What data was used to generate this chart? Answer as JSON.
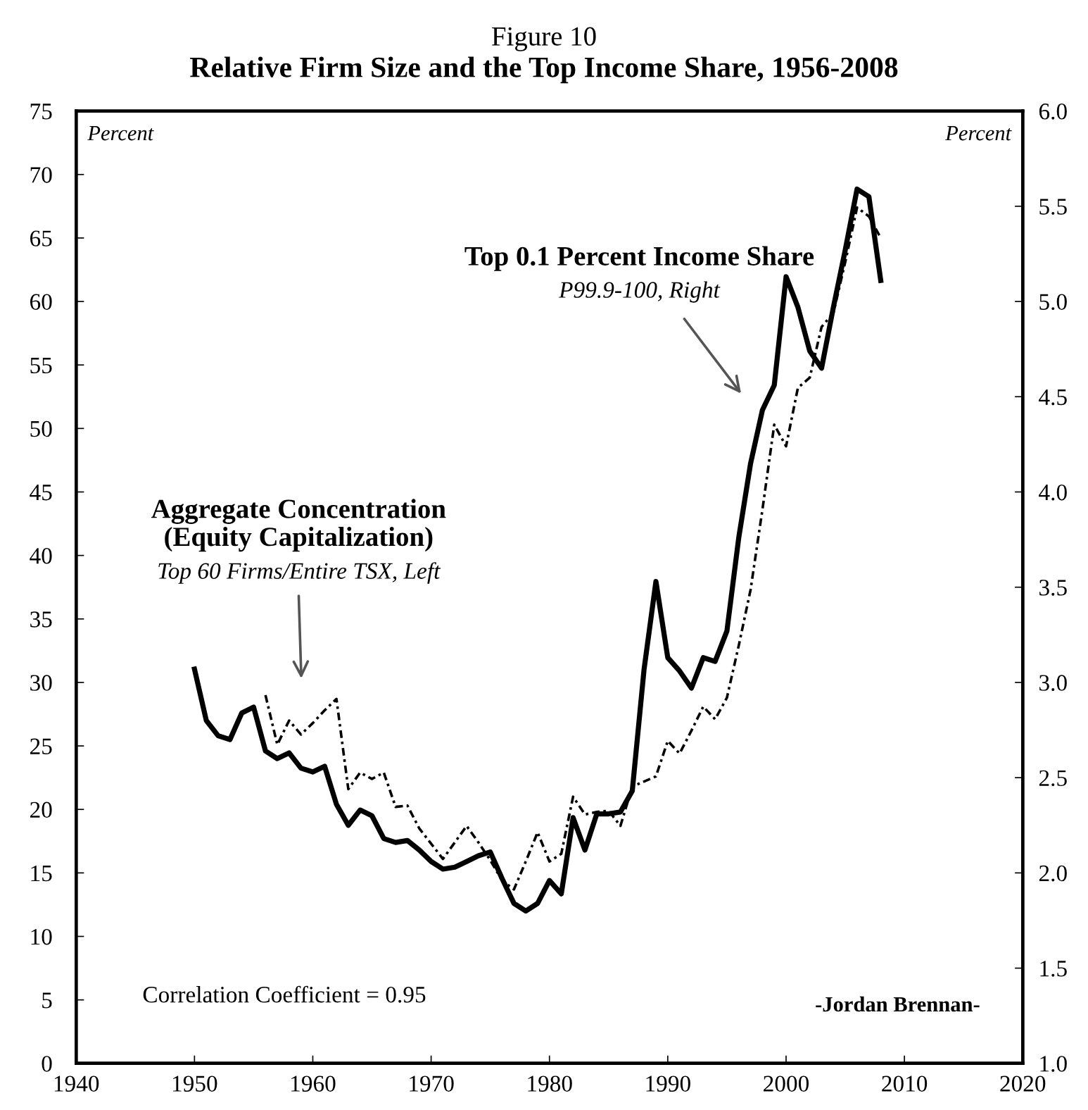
{
  "chart_data": {
    "type": "line",
    "title": "Figure 10",
    "subtitle": "Relative Firm Size and the Top Income Share, 1956-2008",
    "ylabel": "Percent",
    "y2label": "Percent",
    "xlim": [
      1940,
      2020
    ],
    "xticks": [
      1940,
      1950,
      1960,
      1970,
      1980,
      1990,
      2000,
      2010,
      2020
    ],
    "ylim": [
      0,
      75
    ],
    "yticks": [
      0,
      5,
      10,
      15,
      20,
      25,
      30,
      35,
      40,
      45,
      50,
      55,
      60,
      65,
      70,
      75
    ],
    "y2lim": [
      1.0,
      6.0
    ],
    "y2ticks": [
      {
        "value": 1.0,
        "label": "1.0"
      },
      {
        "value": 1.5,
        "label": "1.5"
      },
      {
        "value": 2.0,
        "label": "2.0"
      },
      {
        "value": 2.5,
        "label": "2.5"
      },
      {
        "value": 3.0,
        "label": "3.0"
      },
      {
        "value": 3.5,
        "label": "3.5"
      },
      {
        "value": 4.0,
        "label": "4.0"
      },
      {
        "value": 4.5,
        "label": "4.5"
      },
      {
        "value": 5.0,
        "label": "5.0"
      },
      {
        "value": 5.5,
        "label": "5.5"
      },
      {
        "value": 6.0,
        "label": "6.0"
      }
    ],
    "grid": false,
    "series": [
      {
        "color": "#000000",
        "axis": "y2",
        "line_style": "solid",
        "x": [
          1950,
          1951,
          1952,
          1953,
          1954,
          1955,
          1956,
          1957,
          1958,
          1959,
          1960,
          1961,
          1962,
          1963,
          1964,
          1965,
          1966,
          1967,
          1968,
          1969,
          1970,
          1971,
          1972,
          1973,
          1974,
          1975,
          1976,
          1977,
          1978,
          1979,
          1980,
          1981,
          1982,
          1983,
          1984,
          1985,
          1986,
          1987,
          1988,
          1989,
          1990,
          1991,
          1992,
          1993,
          1994,
          1995,
          1996,
          1997,
          1998,
          1999,
          2000,
          2001,
          2002,
          2003,
          2004,
          2005,
          2006,
          2007,
          2008
        ],
        "values": [
          3.07,
          2.8,
          2.72,
          2.7,
          2.84,
          2.87,
          2.64,
          2.6,
          2.63,
          2.55,
          2.53,
          2.56,
          2.36,
          2.25,
          2.33,
          2.3,
          2.18,
          2.16,
          2.17,
          2.12,
          2.06,
          2.02,
          2.03,
          2.06,
          2.09,
          2.11,
          1.97,
          1.84,
          1.8,
          1.84,
          1.96,
          1.89,
          2.29,
          2.12,
          2.31,
          2.31,
          2.32,
          2.43,
          3.07,
          3.53,
          3.13,
          3.06,
          2.97,
          3.13,
          3.11,
          3.27,
          3.76,
          4.15,
          4.43,
          4.56,
          5.13,
          4.97,
          4.74,
          4.65,
          4.97,
          5.27,
          5.59,
          5.55,
          5.11
        ]
      },
      {
        "color": "#000000",
        "line_style": "dashed",
        "x": [
          1956,
          1957,
          1958,
          1959,
          1960,
          1961,
          1962,
          1963,
          1964,
          1965,
          1966,
          1967,
          1968,
          1969,
          1970,
          1971,
          1972,
          1973,
          1974,
          1975,
          1976,
          1977,
          1978,
          1979,
          1980,
          1981,
          1982,
          1983,
          1984,
          1985,
          1986,
          1987,
          1988,
          1989,
          1990,
          1991,
          1992,
          1993,
          1994,
          1995,
          1996,
          1997,
          1998,
          1999,
          2000,
          2001,
          2002,
          2003,
          2004,
          2005,
          2006,
          2007,
          2008
        ],
        "values": [
          29.0,
          25.1,
          27.0,
          25.9,
          26.8,
          27.8,
          28.7,
          21.6,
          22.9,
          22.4,
          22.9,
          20.2,
          20.3,
          18.5,
          17.3,
          16.1,
          17.4,
          18.7,
          17.4,
          16.0,
          14.4,
          13.7,
          15.9,
          18.2,
          15.9,
          16.5,
          21.0,
          19.6,
          19.8,
          19.9,
          18.7,
          21.8,
          22.2,
          22.6,
          25.4,
          24.4,
          26.2,
          28.1,
          27.1,
          28.8,
          32.9,
          37.3,
          43.6,
          50.3,
          48.6,
          53.2,
          54.0,
          58.0,
          59.1,
          63.1,
          67.4,
          66.7,
          65.0
        ]
      }
    ],
    "annotations": [
      "Top 0.1 Percent Income Share",
      "P99.9-100, Right",
      "Aggregate Concentration\n(Equity Capitalization)",
      "Top 60 Firms/Entire TSX, Left",
      "Correlation Coefficient = 0.95",
      "-Jordan Brennan-"
    ]
  }
}
